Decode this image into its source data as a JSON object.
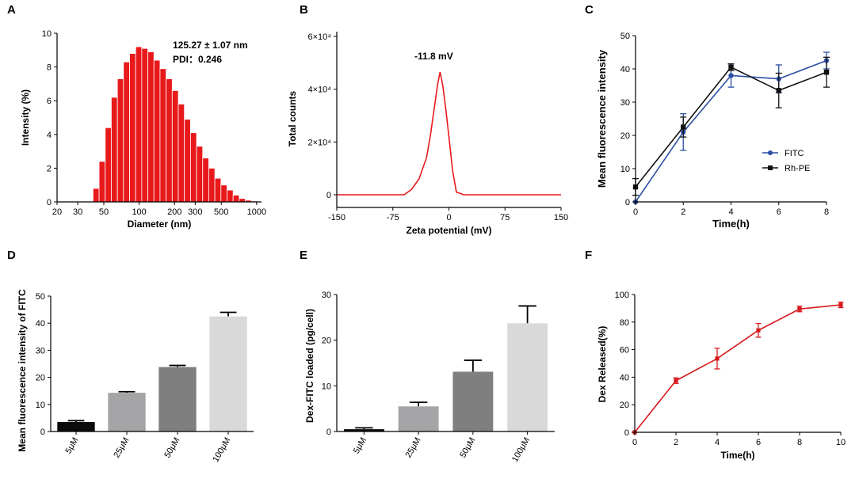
{
  "chart_data": [
    {
      "panel": "A",
      "type": "bar",
      "xlabel": "Diameter (nm)",
      "ylabel": "Intensity (%)",
      "xscale": "log",
      "xlim": [
        20,
        1100
      ],
      "ylim": [
        0,
        10
      ],
      "xtick_values": [
        20,
        30,
        50,
        100,
        200,
        300,
        500,
        1000
      ],
      "xtick_labels": [
        "20",
        "30",
        "50",
        "100",
        "200",
        "300",
        "500",
        "1000"
      ],
      "yticks": [
        0,
        2,
        4,
        6,
        8,
        10
      ],
      "bin_edges": [
        40.5,
        45.6,
        51.4,
        57.9,
        65.3,
        73.5,
        82.9,
        93.4,
        105.2,
        118.5,
        133.6,
        150.5,
        169.6,
        191.1,
        215.4,
        242.7,
        273.4,
        308.1,
        347.2,
        391.2,
        440.8,
        496.7,
        559.7,
        630.7,
        710.7,
        800.8,
        902.4,
        1016.8
      ],
      "values": [
        0.8,
        2.4,
        4.4,
        6.2,
        7.3,
        8.3,
        8.8,
        9.2,
        9.1,
        8.9,
        8.4,
        7.9,
        7.3,
        6.6,
        5.8,
        4.9,
        4.1,
        3.3,
        2.6,
        2.0,
        1.4,
        1.0,
        0.7,
        0.4,
        0.2,
        0.1,
        0.05
      ],
      "color": "#e8191b",
      "annotations": [
        "125.27 ± 1.07 nm",
        "PDI：0.246"
      ]
    },
    {
      "panel": "B",
      "type": "line",
      "xlabel": "Zeta potential (mV)",
      "ylabel": "Total counts",
      "xlim": [
        -150,
        150
      ],
      "ylim": [
        0,
        60000
      ],
      "xticks": [
        -150,
        -75,
        0,
        75,
        150
      ],
      "ytick_values": [
        0,
        20000,
        40000,
        60000
      ],
      "ytick_labels": [
        "0",
        "2×10⁴",
        "4×10⁴",
        "6×10⁴"
      ],
      "x": [
        -150,
        -60,
        -50,
        -40,
        -30,
        -25,
        -20,
        -15,
        -11.8,
        -8,
        -4,
        0,
        5,
        10,
        20,
        30,
        150
      ],
      "y": [
        0,
        0,
        2000,
        6000,
        14000,
        22000,
        32000,
        42000,
        46500,
        41000,
        32000,
        22000,
        9000,
        1000,
        0,
        0,
        0
      ],
      "color": "#e8191b",
      "annotation": "-11.8 mV"
    },
    {
      "panel": "C",
      "type": "line",
      "xlabel": "Time(h)",
      "ylabel": "Mean fluorescence intensity",
      "xlim": [
        0,
        8
      ],
      "ylim": [
        0,
        50
      ],
      "xticks": [
        0,
        2,
        4,
        6,
        8
      ],
      "yticks": [
        0,
        10,
        20,
        30,
        40,
        50
      ],
      "x": [
        0,
        2,
        4,
        6,
        8
      ],
      "series": [
        {
          "name": "FITC",
          "values": [
            0,
            21,
            38,
            37,
            42.5
          ],
          "errors": [
            0,
            5.5,
            3.5,
            4.2,
            2.5
          ],
          "color": "#2a4fa3",
          "marker": "circle"
        },
        {
          "name": "Rh-PE",
          "values": [
            4.5,
            22.5,
            40.5,
            33.5,
            39
          ],
          "errors": [
            2.5,
            3,
            1,
            5.2,
            4.5
          ],
          "color": "#111111",
          "marker": "square"
        }
      ],
      "legend_position": "center-right"
    },
    {
      "panel": "D",
      "type": "bar",
      "ylabel": "Mean fluorescence intensity of FITC",
      "categories": [
        "5μM",
        "25μM",
        "50μM",
        "100μM"
      ],
      "values": [
        3.5,
        14.3,
        23.8,
        42.5
      ],
      "errors": [
        0.5,
        0.4,
        0.6,
        1.5
      ],
      "colors": [
        "#0b0b0b",
        "#a5a5a8",
        "#7f7f7f",
        "#d9d9d9"
      ],
      "ylim": [
        0,
        50
      ],
      "yticks": [
        0,
        10,
        20,
        30,
        40,
        50
      ]
    },
    {
      "panel": "E",
      "type": "bar",
      "ylabel": "Dex-FITC loaded (pg/cell)",
      "categories": [
        "5μM",
        "25μM",
        "50μM",
        "100μM"
      ],
      "values": [
        0.5,
        5.5,
        13.1,
        23.7
      ],
      "errors": [
        0.3,
        0.9,
        2.5,
        3.8
      ],
      "colors": [
        "#0b0b0b",
        "#a5a5a8",
        "#7f7f7f",
        "#d9d9d9"
      ],
      "ylim": [
        0,
        30
      ],
      "yticks": [
        0,
        10,
        20,
        30
      ]
    },
    {
      "panel": "F",
      "type": "line",
      "xlabel": "Time(h)",
      "ylabel": "Dex Released(%)",
      "xlim": [
        0,
        10
      ],
      "ylim": [
        0,
        100
      ],
      "xticks": [
        0,
        2,
        4,
        6,
        8,
        10
      ],
      "yticks": [
        0,
        20,
        40,
        60,
        80,
        100
      ],
      "x": [
        0,
        2,
        4,
        6,
        8,
        10
      ],
      "values": [
        0,
        37.5,
        53.5,
        74,
        89.5,
        92.5
      ],
      "errors": [
        0,
        2,
        7.5,
        5,
        2,
        2
      ],
      "color": "#d7191c"
    }
  ]
}
